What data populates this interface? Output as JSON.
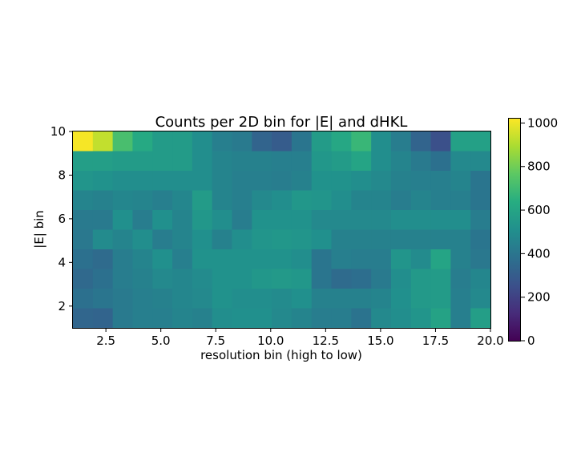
{
  "chart_data": {
    "type": "heatmap",
    "title": "Counts per 2D bin for |E| and dHKL",
    "xlabel": "resolution bin (high to low)",
    "ylabel": "|E| bin",
    "xlim": [
      1,
      20
    ],
    "ylim": [
      1,
      10
    ],
    "xticks": [
      2.5,
      5.0,
      7.5,
      10.0,
      12.5,
      15.0,
      17.5,
      20.0
    ],
    "xtick_labels": [
      "2.5",
      "5.0",
      "7.5",
      "10.0",
      "12.5",
      "15.0",
      "17.5",
      "20.0"
    ],
    "yticks": [
      2,
      4,
      6,
      8,
      10
    ],
    "ytick_labels": [
      "2",
      "4",
      "6",
      "8",
      "10"
    ],
    "colorbar": {
      "range": [
        0,
        1020
      ],
      "ticks": [
        0,
        200,
        400,
        600,
        800,
        1000
      ],
      "tick_labels": [
        "0",
        "200",
        "400",
        "600",
        "800",
        "1000"
      ],
      "colormap": "viridis"
    },
    "rows_top_to_bottom": [
      [
        1010,
        930,
        720,
        620,
        560,
        560,
        500,
        440,
        420,
        330,
        300,
        400,
        560,
        610,
        680,
        500,
        430,
        330,
        250,
        580,
        580
      ],
      [
        570,
        570,
        560,
        560,
        560,
        560,
        500,
        460,
        450,
        450,
        440,
        440,
        540,
        560,
        600,
        500,
        460,
        420,
        380,
        480,
        480
      ],
      [
        530,
        520,
        500,
        500,
        500,
        500,
        500,
        460,
        440,
        440,
        430,
        450,
        520,
        520,
        500,
        480,
        450,
        440,
        440,
        460,
        400
      ],
      [
        460,
        450,
        470,
        460,
        440,
        470,
        560,
        460,
        440,
        480,
        500,
        540,
        530,
        500,
        460,
        460,
        430,
        460,
        440,
        440,
        400
      ],
      [
        420,
        420,
        510,
        430,
        510,
        460,
        540,
        500,
        430,
        520,
        520,
        520,
        480,
        480,
        480,
        480,
        500,
        500,
        500,
        500,
        430
      ],
      [
        410,
        490,
        460,
        500,
        430,
        460,
        510,
        450,
        500,
        530,
        540,
        530,
        510,
        450,
        450,
        450,
        450,
        450,
        450,
        450,
        400
      ],
      [
        380,
        360,
        430,
        460,
        510,
        440,
        520,
        520,
        520,
        520,
        520,
        500,
        400,
        440,
        430,
        430,
        530,
        490,
        600,
        450,
        410
      ],
      [
        350,
        380,
        430,
        450,
        480,
        470,
        490,
        520,
        520,
        540,
        550,
        540,
        400,
        360,
        370,
        420,
        500,
        550,
        560,
        430,
        470
      ],
      [
        380,
        400,
        420,
        440,
        450,
        470,
        480,
        520,
        500,
        500,
        490,
        510,
        450,
        450,
        450,
        460,
        510,
        550,
        560,
        440,
        480
      ],
      [
        340,
        330,
        420,
        440,
        440,
        460,
        450,
        500,
        510,
        510,
        480,
        460,
        430,
        430,
        390,
        480,
        500,
        530,
        590,
        440,
        570
      ]
    ]
  }
}
